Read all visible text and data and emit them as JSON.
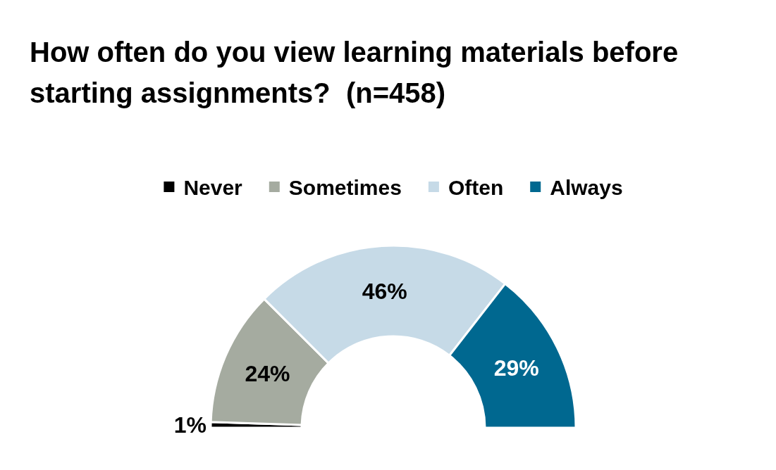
{
  "chart_data": {
    "type": "donut",
    "title": "How often do you view learning materials before starting assignments?  (n=458)",
    "categories": [
      "Never",
      "Sometimes",
      "Often",
      "Always"
    ],
    "values": [
      1,
      24,
      46,
      29
    ],
    "colors": [
      "#000000",
      "#a5aba0",
      "#c6dae7",
      "#006890"
    ],
    "value_labels": [
      "1%",
      "24%",
      "46%",
      "29%"
    ],
    "legend": "top"
  }
}
